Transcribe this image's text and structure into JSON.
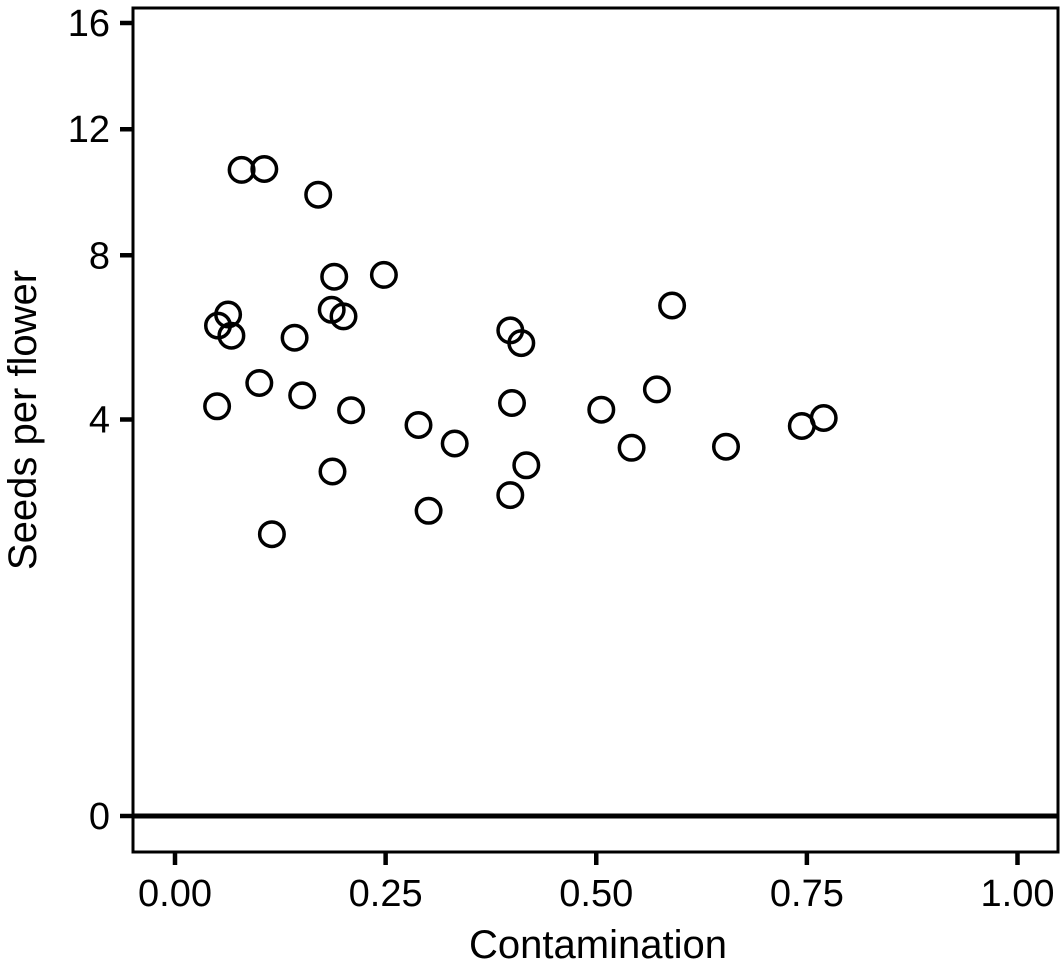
{
  "figure": {
    "background": "#ffffff",
    "ink_color": "#000000"
  },
  "chart_data": {
    "type": "scatter",
    "title": "",
    "xlabel": "Contamination",
    "ylabel": "Seeds per flower",
    "x_axis": {
      "ticks": [
        {
          "v": 0.0,
          "label": "0.00"
        },
        {
          "v": 0.25,
          "label": "0.25"
        },
        {
          "v": 0.5,
          "label": "0.50"
        },
        {
          "v": 0.75,
          "label": "0.75"
        },
        {
          "v": 1.0,
          "label": "1.00"
        }
      ],
      "xlim": [
        -0.05,
        1.048
      ],
      "scale": "linear"
    },
    "y_axis": {
      "ticks": [
        {
          "v": 0,
          "label": "0"
        },
        {
          "v": 4,
          "label": "4"
        },
        {
          "v": 8,
          "label": "8"
        },
        {
          "v": 12,
          "label": "12"
        },
        {
          "v": 16,
          "label": "16"
        }
      ],
      "ylim": [
        0,
        16.6
      ],
      "scale": "sqrt"
    },
    "grid": false,
    "legend": null,
    "zero_line": true,
    "marker": {
      "shape": "open-circle",
      "outer_radius_px": 14,
      "stroke_px": 3.5,
      "color": "#000000",
      "fill": "none"
    },
    "points": [
      {
        "x": 0.079,
        "y": 10.62
      },
      {
        "x": 0.106,
        "y": 10.65
      },
      {
        "x": 0.17,
        "y": 9.82
      },
      {
        "x": 0.189,
        "y": 7.4
      },
      {
        "x": 0.248,
        "y": 7.45
      },
      {
        "x": 0.186,
        "y": 6.52
      },
      {
        "x": 0.2,
        "y": 6.35
      },
      {
        "x": 0.063,
        "y": 6.4
      },
      {
        "x": 0.051,
        "y": 6.12
      },
      {
        "x": 0.067,
        "y": 5.87
      },
      {
        "x": 0.142,
        "y": 5.82
      },
      {
        "x": 0.05,
        "y": 4.27
      },
      {
        "x": 0.1,
        "y": 4.77
      },
      {
        "x": 0.151,
        "y": 4.5
      },
      {
        "x": 0.209,
        "y": 4.19
      },
      {
        "x": 0.289,
        "y": 3.89
      },
      {
        "x": 0.332,
        "y": 3.53
      },
      {
        "x": 0.187,
        "y": 3.02
      },
      {
        "x": 0.301,
        "y": 2.37
      },
      {
        "x": 0.115,
        "y": 2.02
      },
      {
        "x": 0.59,
        "y": 6.63
      },
      {
        "x": 0.398,
        "y": 6.0
      },
      {
        "x": 0.411,
        "y": 5.69
      },
      {
        "x": 0.572,
        "y": 4.63
      },
      {
        "x": 0.4,
        "y": 4.34
      },
      {
        "x": 0.506,
        "y": 4.2
      },
      {
        "x": 0.542,
        "y": 3.45
      },
      {
        "x": 0.654,
        "y": 3.47
      },
      {
        "x": 0.417,
        "y": 3.13
      },
      {
        "x": 0.398,
        "y": 2.62
      },
      {
        "x": 0.744,
        "y": 3.87
      },
      {
        "x": 0.77,
        "y": 4.03
      }
    ]
  }
}
